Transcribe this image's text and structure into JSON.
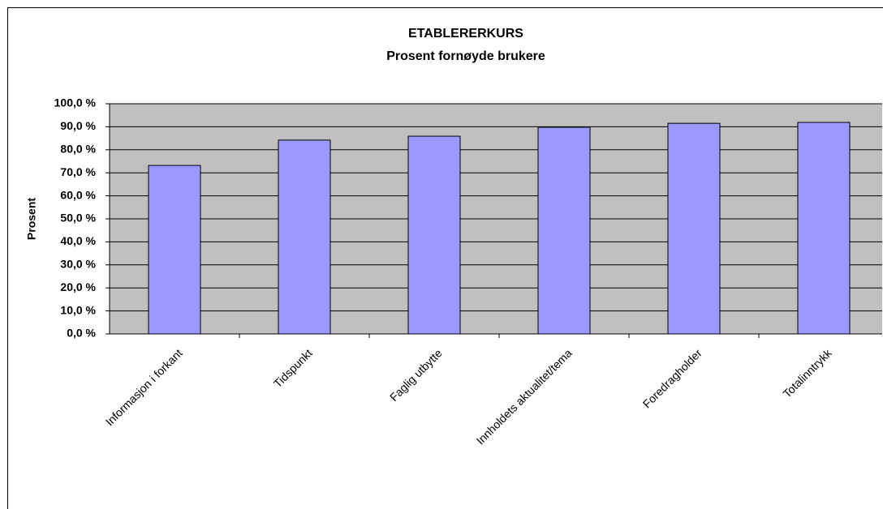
{
  "chart_data": {
    "type": "bar",
    "title": "ETABLERERKURS",
    "subtitle": "Prosent fornøyde brukere",
    "y_label": "Prosent",
    "categories": [
      "Informasjon i forkant",
      "Tidspunkt",
      "Faglig utbytte",
      "Innholdets aktualitet/tema",
      "Foredragholder",
      "Totalinntrykk"
    ],
    "values": [
      73.2,
      84.2,
      85.9,
      89.8,
      91.5,
      91.9
    ],
    "color": "#9999ff",
    "ylim": [
      0,
      100
    ],
    "yticks": [
      {
        "value": 0,
        "label": "0,0 %"
      },
      {
        "value": 10,
        "label": "10,0 %"
      },
      {
        "value": 20,
        "label": "20,0 %"
      },
      {
        "value": 30,
        "label": "30,0 %"
      },
      {
        "value": 40,
        "label": "40,0 %"
      },
      {
        "value": 50,
        "label": "50,0 %"
      },
      {
        "value": 60,
        "label": "60,0 %"
      },
      {
        "value": 70,
        "label": "70,0 %"
      },
      {
        "value": 80,
        "label": "80,0 %"
      },
      {
        "value": 90,
        "label": "90,0 %"
      },
      {
        "value": 100,
        "label": "100,0 %"
      }
    ],
    "grid": true
  }
}
